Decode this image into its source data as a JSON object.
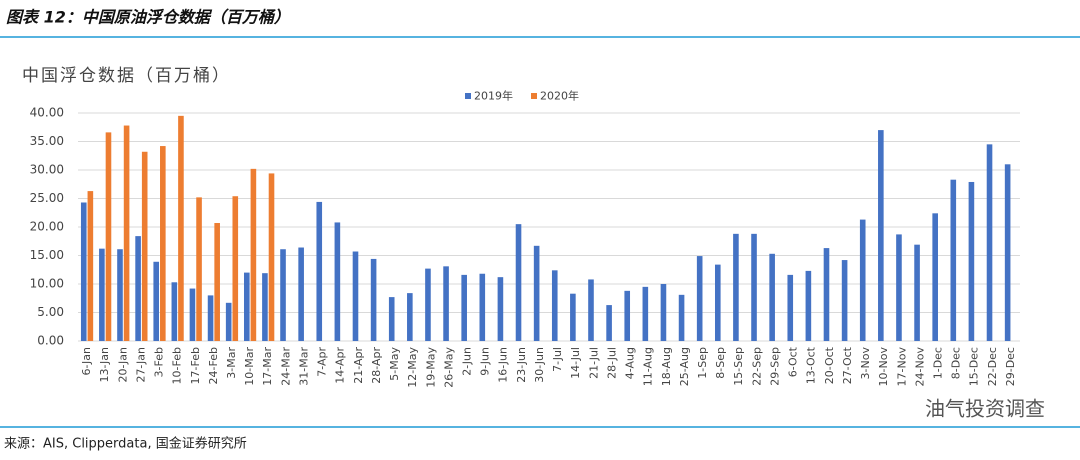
{
  "header": {
    "title": "图表 12：中国原油浮仓数据（百万桶）"
  },
  "chart_data": {
    "type": "bar",
    "title": "中国浮仓数据（百万桶）",
    "categories": [
      "6-Jan",
      "13-Jan",
      "20-Jan",
      "27-Jan",
      "3-Feb",
      "10-Feb",
      "17-Feb",
      "24-Feb",
      "3-Mar",
      "10-Mar",
      "17-Mar",
      "24-Mar",
      "31-Mar",
      "7-Apr",
      "14-Apr",
      "21-Apr",
      "28-Apr",
      "5-May",
      "12-May",
      "19-May",
      "26-May",
      "2-Jun",
      "9-Jun",
      "16-Jun",
      "23-Jun",
      "30-Jun",
      "7-Jul",
      "14-Jul",
      "21-Jul",
      "28-Jul",
      "4-Aug",
      "11-Aug",
      "18-Aug",
      "25-Aug",
      "1-Sep",
      "8-Sep",
      "15-Sep",
      "22-Sep",
      "29-Sep",
      "6-Oct",
      "13-Oct",
      "20-Oct",
      "27-Oct",
      "3-Nov",
      "10-Nov",
      "17-Nov",
      "24-Nov",
      "1-Dec",
      "8-Dec",
      "15-Dec",
      "22-Dec",
      "29-Dec"
    ],
    "series": [
      {
        "name": "2019年",
        "color": "#4472c4",
        "values": [
          24.3,
          16.2,
          16.1,
          18.4,
          13.9,
          10.3,
          9.2,
          8.0,
          6.7,
          12.0,
          11.9,
          16.1,
          16.4,
          24.4,
          20.8,
          15.7,
          14.4,
          7.7,
          8.4,
          12.7,
          13.1,
          11.6,
          11.8,
          11.2,
          20.5,
          16.7,
          12.4,
          8.3,
          10.8,
          6.3,
          8.8,
          9.5,
          10.0,
          8.1,
          14.9,
          13.4,
          18.8,
          18.8,
          15.3,
          11.6,
          12.3,
          16.3,
          14.2,
          21.3,
          37.0,
          18.7,
          16.9,
          22.4,
          28.3,
          27.9,
          34.5,
          31.0
        ]
      },
      {
        "name": "2020年",
        "color": "#ed7d31",
        "values": [
          26.3,
          36.6,
          37.8,
          33.2,
          34.2,
          39.5,
          25.2,
          20.7,
          25.4,
          30.2,
          29.4,
          null,
          null,
          null,
          null,
          null,
          null,
          null,
          null,
          null,
          null,
          null,
          null,
          null,
          null,
          null,
          null,
          null,
          null,
          null,
          null,
          null,
          null,
          null,
          null,
          null,
          null,
          null,
          null,
          null,
          null,
          null,
          null,
          null,
          null,
          null,
          null,
          null,
          null,
          null,
          null,
          null
        ]
      }
    ],
    "ylim": [
      0,
      40
    ],
    "yticks": [
      {
        "value": 0,
        "label": "0.00"
      },
      {
        "value": 5,
        "label": "5.00"
      },
      {
        "value": 10,
        "label": "10.00"
      },
      {
        "value": 15,
        "label": "15.00"
      },
      {
        "value": 20,
        "label": "20.00"
      },
      {
        "value": 25,
        "label": "25.00"
      },
      {
        "value": 30,
        "label": "30.00"
      },
      {
        "value": 35,
        "label": "35.00"
      },
      {
        "value": 40,
        "label": "40.00"
      }
    ],
    "grid": true,
    "legend": "top"
  },
  "watermark": "油气投资调查",
  "footer": {
    "source": "来源：AIS, Clipperdata, 国金证券研究所"
  }
}
